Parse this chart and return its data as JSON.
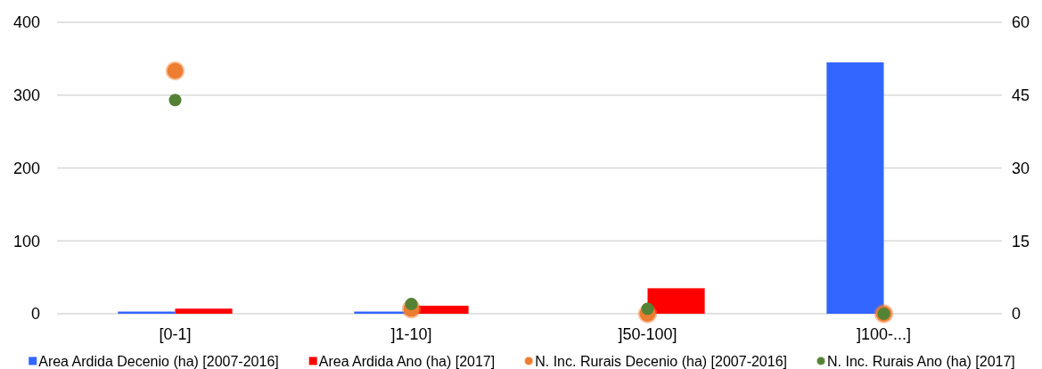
{
  "chart_data": {
    "type": "bar",
    "categories": [
      "[0-1]",
      "]1-10]",
      "]50-100]",
      "]100-...]"
    ],
    "series": [
      {
        "name": "Area Ardida Decenio (ha) [2007-2016]",
        "color": "#3366ff",
        "values": [
          3,
          3,
          0,
          345
        ]
      },
      {
        "name": "Area Ardida Ano (ha) [2017]",
        "color": "#ff0000",
        "values": [
          7,
          11,
          35,
          0
        ]
      },
      {
        "name": "N. Inc. Rurais Decenio (ha) [2007-2016]",
        "type": "scatter",
        "axis": "y2",
        "marker": "circle",
        "color": "#ed7d31",
        "x": [
          "[0-1]",
          "]1-10]",
          "]50-100]",
          "]100-...]"
        ],
        "values": [
          50,
          1,
          0,
          0
        ]
      },
      {
        "name": "N. Inc. Rurais Ano (ha) [2017]",
        "type": "scatter",
        "axis": "y2",
        "marker": "circle",
        "color": "#548235",
        "x": [
          "[0-1]",
          "]1-10]",
          "]50-100]",
          "]100-...]"
        ],
        "values": [
          44,
          2,
          1,
          0
        ]
      }
    ],
    "ylim": [
      0,
      400
    ],
    "yticks": [
      0,
      100,
      200,
      300,
      400
    ],
    "y2lim": [
      0,
      60
    ],
    "y2ticks": [
      0,
      15,
      30,
      45,
      60
    ],
    "grid": "y",
    "legend": "bottom"
  }
}
